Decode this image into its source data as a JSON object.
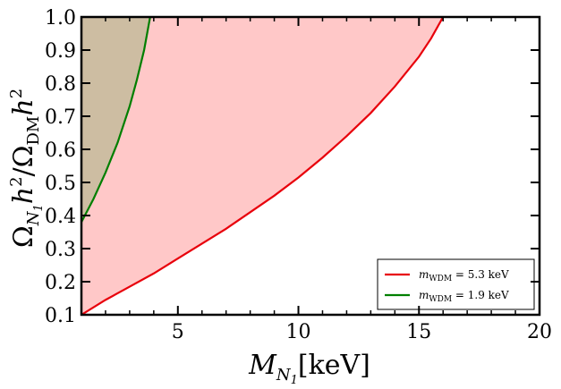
{
  "chart_data": {
    "type": "area",
    "xlabel": "M_{N_1}[keV]",
    "ylabel": "Ω_{N_1}h²/Ω_{DM}h²",
    "xlim": [
      1,
      20
    ],
    "ylim": [
      0.1,
      1.0
    ],
    "xticks": [
      {
        "value": 5,
        "label": "5"
      },
      {
        "value": 10,
        "label": "10"
      },
      {
        "value": 15,
        "label": "15"
      },
      {
        "value": 20,
        "label": "20"
      }
    ],
    "yticks": [
      {
        "value": 0.1,
        "label": "0.1"
      },
      {
        "value": 0.2,
        "label": "0.2"
      },
      {
        "value": 0.3,
        "label": "0.3"
      },
      {
        "value": 0.4,
        "label": "0.4"
      },
      {
        "value": 0.5,
        "label": "0.5"
      },
      {
        "value": 0.6,
        "label": "0.6"
      },
      {
        "value": 0.7,
        "label": "0.7"
      },
      {
        "value": 0.8,
        "label": "0.8"
      },
      {
        "value": 0.9,
        "label": "0.9"
      },
      {
        "value": 1.0,
        "label": "1.0"
      }
    ],
    "grid": false,
    "legend_position": "bottom-right",
    "series": [
      {
        "name": "m_WDM = 5.3 keV",
        "legend_main": "m",
        "legend_sub": "WDM",
        "legend_rest": " = 5.3 keV",
        "color": "#e8000b",
        "fill": "#ffc8c8",
        "x": [
          1.0,
          2.0,
          3.0,
          4.0,
          5.0,
          6.0,
          7.0,
          8.0,
          9.0,
          10.0,
          11.0,
          12.0,
          13.0,
          14.0,
          15.0,
          15.5,
          16.0
        ],
        "y": [
          0.1,
          0.145,
          0.185,
          0.225,
          0.27,
          0.315,
          0.36,
          0.41,
          0.46,
          0.515,
          0.575,
          0.64,
          0.71,
          0.79,
          0.88,
          0.935,
          1.0
        ]
      },
      {
        "name": "m_WDM = 1.9 keV",
        "legend_main": "m",
        "legend_sub": "WDM",
        "legend_rest": " = 1.9 keV",
        "color": "#007f00",
        "fill": "#cdbda2",
        "x": [
          1.0,
          1.5,
          2.0,
          2.5,
          3.0,
          3.3,
          3.6,
          3.85
        ],
        "y": [
          0.38,
          0.45,
          0.53,
          0.62,
          0.73,
          0.81,
          0.9,
          1.0
        ]
      }
    ]
  }
}
